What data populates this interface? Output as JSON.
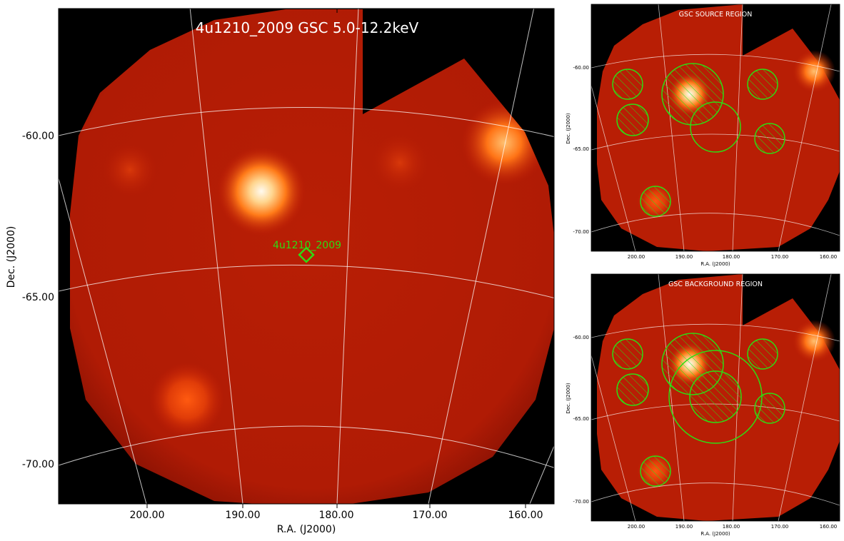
{
  "main": {
    "title": "4u1210_2009 GSC 5.0-12.2keV",
    "target_label": "4u1210_2009",
    "xlabel": "R.A. (J2000)",
    "ylabel": "Dec. (J2000)",
    "x_ticks": [
      "200.00",
      "190.00",
      "180.00",
      "170.00",
      "160.00"
    ],
    "y_ticks": [
      "-60.00",
      "-65.00",
      "-70.00"
    ]
  },
  "source_panel": {
    "title": "GSC SOURCE REGION",
    "xlabel": "R.A. (J2000)",
    "ylabel": "Dec. (J2000)",
    "x_ticks": [
      "200.00",
      "190.00",
      "180.00",
      "170.00",
      "160.00"
    ],
    "y_ticks": [
      "-60.00",
      "-65.00",
      "-70.00"
    ]
  },
  "background_panel": {
    "title": "GSC BACKGROUND REGION",
    "xlabel": "R.A. (J2000)",
    "ylabel": "Dec. (J2000)",
    "x_ticks": [
      "200.00",
      "190.00",
      "180.00",
      "170.00",
      "160.00"
    ],
    "y_ticks": [
      "-60.00",
      "-65.00",
      "-70.00"
    ]
  },
  "colors": {
    "sky_background": "#000000",
    "exposure_red": "#b81d05",
    "region_green": "#2edc13",
    "grid_white": "#ffffff",
    "source_white": "#fff6e8",
    "source_orange": "#ff7a10"
  }
}
